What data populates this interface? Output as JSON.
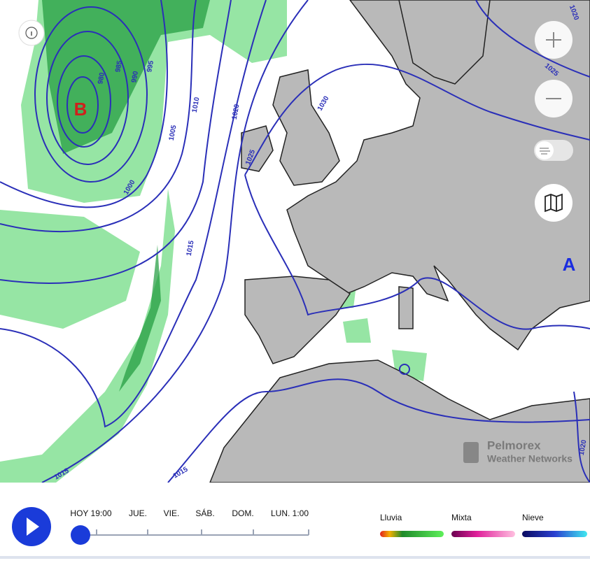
{
  "map": {
    "pressure_centers": [
      "B",
      "A"
    ],
    "isobar_labels": [
      "1020",
      "1025",
      "1030",
      "1020",
      "1025",
      "1010",
      "1005",
      "1000",
      "995",
      "990",
      "985",
      "980",
      "1015",
      "1015",
      "1015",
      "1020"
    ],
    "attribution": {
      "brand": "Pelmorex",
      "sub": "Weather Networks"
    }
  },
  "timeline": {
    "labels": [
      "HOY 19:00",
      "JUE.",
      "VIE.",
      "SÁB.",
      "DOM.",
      "LUN. 1:00"
    ]
  },
  "legend": {
    "labels": [
      "Lluvia",
      "Mixta",
      "Nieve"
    ]
  }
}
